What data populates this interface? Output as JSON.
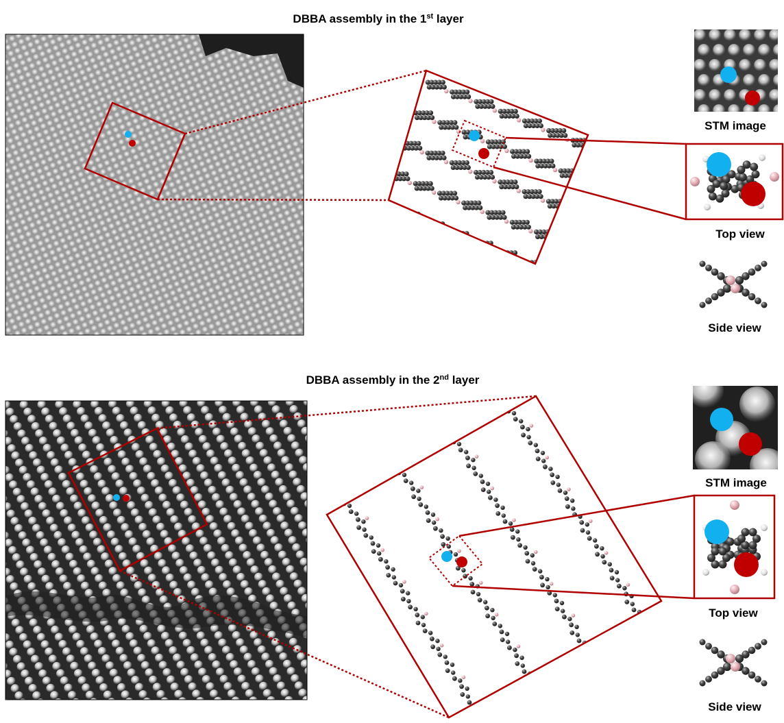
{
  "panel1": {
    "title_main": "DBBA assembly in the 1",
    "title_sup": "st",
    "title_end": " layer",
    "stm_label": "STM image",
    "top_label": "Top view",
    "side_label": "Side view"
  },
  "panel2": {
    "title_main": "DBBA assembly in the 2",
    "title_sup": "nd",
    "title_end": " layer",
    "stm_label": "STM image",
    "top_label": "Top view",
    "side_label": "Side view"
  },
  "colors": {
    "frame_red": "#b00000",
    "marker_blue": "#13b0f0",
    "marker_red": "#c00000",
    "carbon": "#3f3f3f",
    "boron": "#e8b6bd"
  }
}
